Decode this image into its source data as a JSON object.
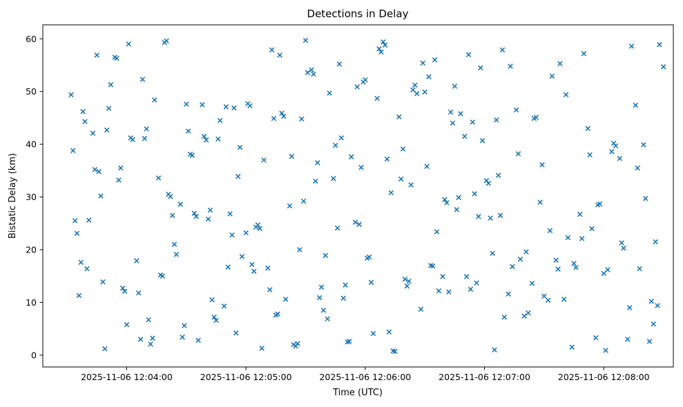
{
  "chart_data": {
    "type": "scatter",
    "title": "Detections in Delay",
    "xlabel": "Time (UTC)",
    "ylabel": "Bistatic Delay (km)",
    "marker": "x",
    "marker_color": "#1f77b4",
    "x_unit": "seconds after 2025-11-06 12:03:30 UTC",
    "x_ticks": [
      {
        "seconds": 30,
        "label": "2025-11-06 12:04:00"
      },
      {
        "seconds": 90,
        "label": "2025-11-06 12:05:00"
      },
      {
        "seconds": 150,
        "label": "2025-11-06 12:06:00"
      },
      {
        "seconds": 210,
        "label": "2025-11-06 12:07:00"
      },
      {
        "seconds": 270,
        "label": "2025-11-06 12:08:00"
      }
    ],
    "y_ticks": [
      0,
      10,
      20,
      30,
      40,
      50,
      60
    ],
    "xlim_seconds": [
      -12.2,
      305
    ],
    "ylim": [
      -2.25,
      62.65
    ],
    "grid": false,
    "legend": "none",
    "x_seconds": [
      2,
      3,
      4,
      5,
      6,
      7,
      8,
      9,
      10,
      11,
      13,
      14,
      15,
      16,
      17,
      18,
      19,
      20,
      21,
      22,
      24,
      25,
      26,
      27,
      28,
      29,
      30,
      31,
      32,
      33,
      35,
      36,
      37,
      38,
      39,
      40,
      41,
      42,
      43,
      44,
      46,
      47,
      48,
      49,
      50,
      51,
      52,
      53,
      54,
      55,
      57,
      58,
      59,
      60,
      61,
      62,
      63,
      64,
      65,
      66,
      68,
      69,
      70,
      71,
      72,
      73,
      74,
      75,
      76,
      77,
      79,
      80,
      81,
      82,
      83,
      84,
      85,
      86,
      87,
      88,
      90,
      91,
      92,
      93,
      94,
      95,
      96,
      97,
      98,
      99,
      101,
      102,
      103,
      104,
      105,
      106,
      107,
      108,
      109,
      110,
      112,
      113,
      114,
      115,
      116,
      117,
      118,
      119,
      120,
      121,
      123,
      124,
      125,
      126,
      127,
      128,
      129,
      130,
      131,
      132,
      134,
      135,
      136,
      137,
      138,
      139,
      140,
      141,
      142,
      143,
      145,
      146,
      147,
      148,
      149,
      150,
      151,
      152,
      153,
      154,
      156,
      157,
      158,
      159,
      160,
      161,
      162,
      163,
      164,
      165,
      167,
      168,
      169,
      170,
      171,
      172,
      173,
      174,
      175,
      176,
      178,
      179,
      180,
      181,
      182,
      183,
      184,
      185,
      186,
      187,
      189,
      190,
      191,
      192,
      193,
      194,
      195,
      196,
      197,
      198,
      200,
      201,
      202,
      203,
      204,
      205,
      206,
      207,
      208,
      209,
      211,
      212,
      213,
      214,
      215,
      216,
      217,
      218,
      219,
      220,
      222,
      223,
      224,
      226,
      227,
      228,
      230,
      231,
      232,
      234,
      235,
      236,
      238,
      239,
      240,
      242,
      243,
      244,
      246,
      247,
      248,
      250,
      251,
      252,
      254,
      255,
      256,
      258,
      259,
      260,
      262,
      263,
      264,
      266,
      267,
      268,
      270,
      271,
      272,
      274,
      275,
      276,
      278,
      279,
      280,
      282,
      283,
      284,
      286,
      287,
      288,
      290,
      291,
      293,
      294,
      295,
      296,
      297,
      298,
      300
    ],
    "y_km": [
      49.4,
      38.8,
      25.5,
      23.1,
      11.3,
      17.6,
      46.2,
      44.3,
      16.4,
      25.6,
      42.1,
      35.2,
      56.9,
      34.8,
      30.2,
      13.9,
      1.2,
      42.7,
      46.8,
      51.3,
      56.5,
      56.3,
      33.2,
      35.5,
      12.7,
      12.1,
      5.8,
      59.0,
      41.2,
      40.9,
      17.9,
      11.8,
      3.0,
      52.3,
      41.1,
      42.9,
      6.7,
      2.1,
      3.2,
      48.4,
      33.6,
      15.2,
      15.0,
      59.3,
      59.6,
      30.5,
      30.1,
      26.5,
      21.0,
      19.1,
      28.6,
      3.4,
      5.6,
      47.6,
      42.5,
      38.1,
      37.9,
      26.9,
      26.3,
      2.8,
      47.5,
      41.5,
      40.8,
      25.8,
      27.5,
      10.5,
      7.2,
      6.6,
      41.0,
      44.5,
      9.3,
      47.1,
      16.7,
      26.8,
      22.8,
      46.9,
      4.2,
      33.9,
      39.4,
      18.7,
      23.2,
      47.7,
      47.3,
      17.2,
      15.9,
      24.3,
      24.7,
      24.0,
      1.3,
      37.0,
      16.5,
      12.4,
      57.9,
      44.9,
      7.6,
      7.8,
      56.9,
      45.9,
      45.3,
      10.6,
      28.3,
      37.7,
      2.0,
      1.7,
      2.2,
      20.0,
      44.8,
      29.2,
      59.7,
      53.6,
      54.1,
      53.3,
      33.0,
      36.5,
      10.9,
      12.9,
      8.5,
      18.9,
      6.9,
      49.7,
      33.5,
      39.8,
      24.1,
      55.2,
      41.2,
      10.8,
      13.3,
      2.5,
      2.6,
      37.6,
      25.2,
      50.9,
      24.8,
      35.6,
      51.8,
      52.2,
      18.4,
      18.6,
      13.8,
      4.1,
      48.7,
      58.1,
      57.5,
      59.4,
      58.8,
      37.2,
      4.4,
      30.8,
      0.8,
      0.7,
      45.2,
      33.4,
      39.1,
      14.4,
      13.1,
      14.0,
      32.3,
      50.3,
      51.2,
      49.6,
      8.7,
      55.4,
      49.9,
      35.8,
      52.8,
      17.0,
      16.9,
      56.0,
      23.4,
      12.2,
      14.9,
      29.5,
      28.9,
      12.0,
      46.1,
      44.0,
      51.0,
      27.6,
      29.9,
      45.8,
      41.5,
      14.9,
      57.0,
      12.5,
      44.2,
      30.6,
      13.7,
      26.3,
      54.5,
      40.7,
      33.1,
      32.6,
      26.0,
      19.3,
      1.0,
      44.6,
      34.1,
      26.5,
      57.9,
      7.2,
      11.6,
      54.8,
      16.8,
      46.5,
      38.2,
      18.2,
      7.4,
      19.6,
      8.0,
      13.6,
      44.9,
      45.1,
      29.0,
      36.1,
      11.2,
      10.4,
      23.6,
      52.9,
      18.0,
      16.3,
      55.3,
      10.6,
      49.4,
      22.3,
      1.5,
      17.4,
      16.6,
      26.7,
      22.1,
      57.2,
      43.0,
      38.0,
      24.0,
      3.3,
      28.5,
      28.7,
      15.5,
      0.9,
      16.2,
      38.6,
      40.2,
      39.7,
      37.3,
      21.3,
      20.3,
      3.0,
      9.0,
      58.6,
      47.4,
      35.5,
      16.4,
      39.9,
      29.7,
      2.6,
      10.2,
      5.9,
      21.5,
      9.4,
      58.9,
      54.7
    ]
  }
}
